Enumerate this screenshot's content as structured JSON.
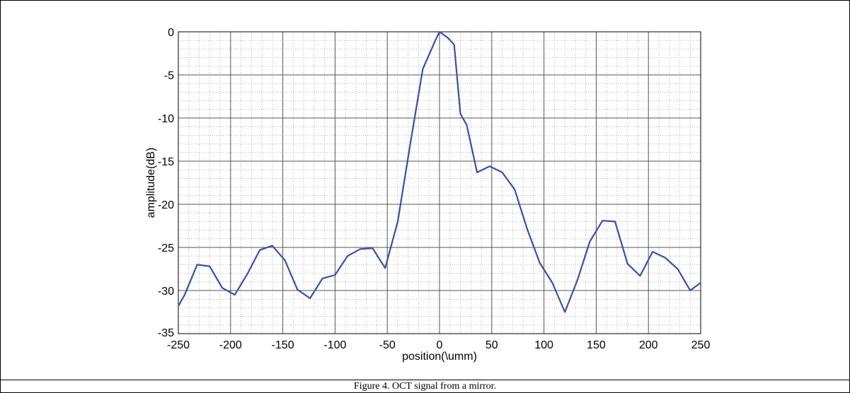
{
  "caption": "Figure 4. OCT signal from a mirror.",
  "colors": {
    "line": "#3a4fa8",
    "major_grid": "#555555",
    "minor_grid": "#b5b5b5"
  },
  "chart_data": {
    "type": "line",
    "title": "",
    "xlabel": "position(\\umm)",
    "ylabel": "amplitude(dB)",
    "xlim": [
      -250,
      250
    ],
    "ylim": [
      -35,
      0
    ],
    "xticks": [
      "-250",
      "-200",
      "-150",
      "-100",
      "-50",
      "0",
      "50",
      "100",
      "150",
      "200",
      "250"
    ],
    "yticks": [
      "0",
      "-5",
      "-10",
      "-15",
      "-20",
      "-25",
      "-30",
      "-35"
    ],
    "grid": true,
    "series": [
      {
        "x": [
          -250,
          -244,
          -232,
          -220,
          -208,
          -196,
          -184,
          -172,
          -160,
          -148,
          -136,
          -124,
          -112,
          -100,
          -88,
          -76,
          -64,
          -52,
          -40,
          -28,
          -16,
          -4,
          0,
          8,
          14,
          20,
          26,
          36,
          48,
          60,
          72,
          84,
          96,
          108,
          120,
          132,
          144,
          156,
          168,
          180,
          192,
          204,
          216,
          228,
          240,
          250
        ],
        "y": [
          -31.8,
          -30.5,
          -27.0,
          -27.2,
          -29.7,
          -30.5,
          -28.1,
          -25.3,
          -24.8,
          -26.5,
          -29.9,
          -30.9,
          -28.6,
          -28.2,
          -26.0,
          -25.2,
          -25.1,
          -27.4,
          -22.0,
          -13.0,
          -4.3,
          -1.0,
          0.0,
          -0.7,
          -1.5,
          -9.5,
          -10.8,
          -16.3,
          -15.6,
          -16.3,
          -18.3,
          -22.9,
          -26.8,
          -29.1,
          -32.5,
          -28.8,
          -24.3,
          -21.9,
          -22.0,
          -26.9,
          -28.3,
          -25.5,
          -26.2,
          -27.5,
          -30.0,
          -29.1
        ]
      }
    ]
  }
}
